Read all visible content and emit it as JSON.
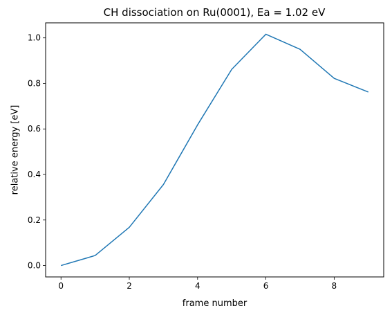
{
  "chart_data": {
    "type": "line",
    "title": "CH dissociation on Ru(0001), Ea = 1.02 eV",
    "xlabel": "frame number",
    "ylabel": "relative energy [eV]",
    "xlim": [
      -0.45,
      9.45
    ],
    "ylim": [
      -0.05,
      1.066
    ],
    "xticks": [
      0,
      2,
      4,
      6,
      8
    ],
    "xtick_labels": [
      "0",
      "2",
      "4",
      "6",
      "8"
    ],
    "yticks": [
      0.0,
      0.2,
      0.4,
      0.6,
      0.8,
      1.0
    ],
    "ytick_labels": [
      "0.0",
      "0.2",
      "0.4",
      "0.6",
      "0.8",
      "1.0"
    ],
    "grid": false,
    "legend": "none",
    "series": [
      {
        "color": "#1f77b4",
        "x": [
          0,
          1,
          2,
          3,
          4,
          5,
          6,
          7,
          8,
          9
        ],
        "y": [
          0.0,
          0.044,
          0.168,
          0.356,
          0.618,
          0.862,
          1.016,
          0.95,
          0.822,
          0.762
        ]
      }
    ]
  }
}
